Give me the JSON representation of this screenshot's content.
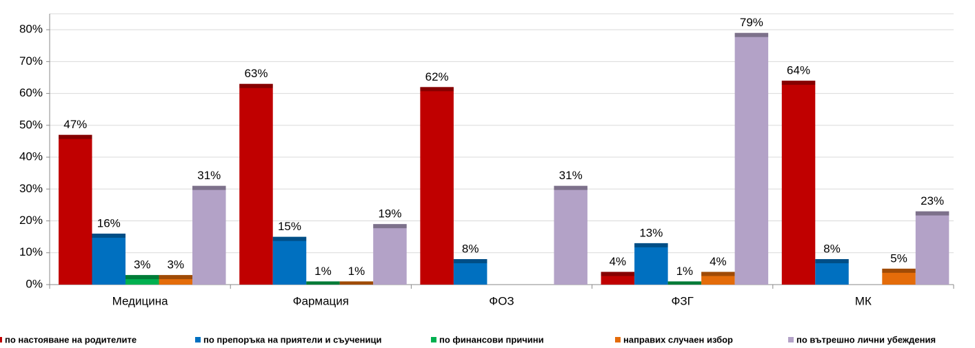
{
  "chart_data": {
    "type": "bar",
    "categories": [
      "Медицина",
      "Фармация",
      "ФОЗ",
      "ФЗГ",
      "МК"
    ],
    "series": [
      {
        "name": "по настояване на родителите",
        "color": "#c00000",
        "values": [
          47,
          63,
          62,
          4,
          64
        ],
        "value_labels": [
          "47%",
          "63%",
          "62%",
          "4%",
          "64%"
        ]
      },
      {
        "name": "по препоръка на приятели и съученици",
        "color": "#0070c0",
        "values": [
          16,
          15,
          8,
          13,
          8
        ],
        "value_labels": [
          "16%",
          "15%",
          "8%",
          "13%",
          "8%"
        ]
      },
      {
        "name": "по финансови причини",
        "color": "#00b050",
        "values": [
          3,
          1,
          null,
          1,
          null
        ],
        "value_labels": [
          "3%",
          "1%",
          null,
          "1%",
          null
        ]
      },
      {
        "name": "направих случаен избор",
        "color": "#e46c0a",
        "values": [
          3,
          1,
          null,
          4,
          5
        ],
        "value_labels": [
          "3%",
          "1%",
          null,
          "4%",
          "5%"
        ]
      },
      {
        "name": "по вътрешно лични убеждения",
        "color": "#b3a2c7",
        "values": [
          31,
          19,
          31,
          79,
          23
        ],
        "value_labels": [
          "31%",
          "19%",
          "31%",
          "79%",
          "23%"
        ]
      }
    ],
    "ylim": [
      0,
      85
    ],
    "yticks": [
      {
        "value": 0,
        "label": "0%"
      },
      {
        "value": 10,
        "label": "10%"
      },
      {
        "value": 20,
        "label": "20%"
      },
      {
        "value": 30,
        "label": "30%"
      },
      {
        "value": 40,
        "label": "40%"
      },
      {
        "value": 50,
        "label": "50%"
      },
      {
        "value": 60,
        "label": "60%"
      },
      {
        "value": 70,
        "label": "70%"
      },
      {
        "value": 80,
        "label": "80%"
      }
    ],
    "grid": true,
    "legend": "bottom"
  }
}
